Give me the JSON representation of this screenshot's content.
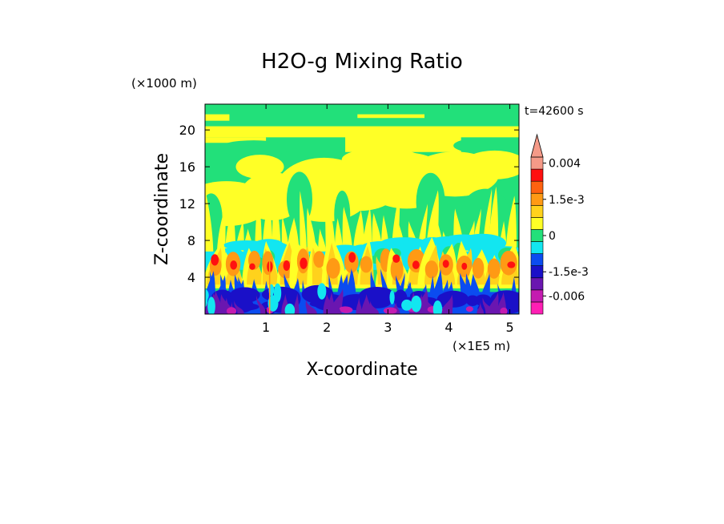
{
  "chart_data": {
    "type": "heatmap",
    "title": "H2O-g Mixing Ratio",
    "xlabel": "X-coordinate",
    "ylabel": "Z-coordinate",
    "x_unit": "(×1E5 m)",
    "y_unit": "(×1000 m)",
    "time_label": "t=42600 s",
    "xlim": [
      0,
      5.15
    ],
    "ylim": [
      0,
      22.8
    ],
    "x_ticks": [
      1,
      2,
      3,
      4,
      5
    ],
    "y_ticks": [
      4,
      8,
      12,
      16,
      20
    ],
    "x_tick_labels": [
      "1",
      "2",
      "3",
      "4",
      "5"
    ],
    "y_tick_labels": [
      "4",
      "8",
      "12",
      "16",
      "20"
    ],
    "colorbar": {
      "levels": [
        -0.009,
        -0.006,
        -0.003,
        -0.0015,
        -0.001,
        -0.0005,
        0,
        0.0005,
        0.001,
        0.0015,
        0.002,
        0.003,
        0.004
      ],
      "colors": [
        "#ff1fb4",
        "#c41bb0",
        "#6a16b0",
        "#1a10c8",
        "#0b4cf0",
        "#12e6f0",
        "#22e07a",
        "#ffff26",
        "#ffd21c",
        "#ff9a14",
        "#ff6210",
        "#ff1010",
        "#f59a88"
      ],
      "labels": [
        "0.004",
        "1.5e-3",
        "0",
        "-1.5e-3",
        "-0.006"
      ],
      "label_values": [
        0.004,
        0.0015,
        0,
        -0.0015,
        -0.006
      ]
    },
    "field_layers": [
      {
        "z_range": [
          0,
          2.5
        ],
        "dominant": "-0.0015 to -0.003 (blue / purple)"
      },
      {
        "z_range": [
          2.5,
          6.5
        ],
        "dominant": "0.0005 to 0.002 plumes (orange / yellow) over cyan"
      },
      {
        "z_range": [
          6.5,
          14
        ],
        "dominant": "0 to 0.0005 (green / yellow)"
      },
      {
        "z_range": [
          14,
          22.8
        ],
        "dominant": "0 to 0.0005 (yellow bands within green)"
      }
    ]
  }
}
